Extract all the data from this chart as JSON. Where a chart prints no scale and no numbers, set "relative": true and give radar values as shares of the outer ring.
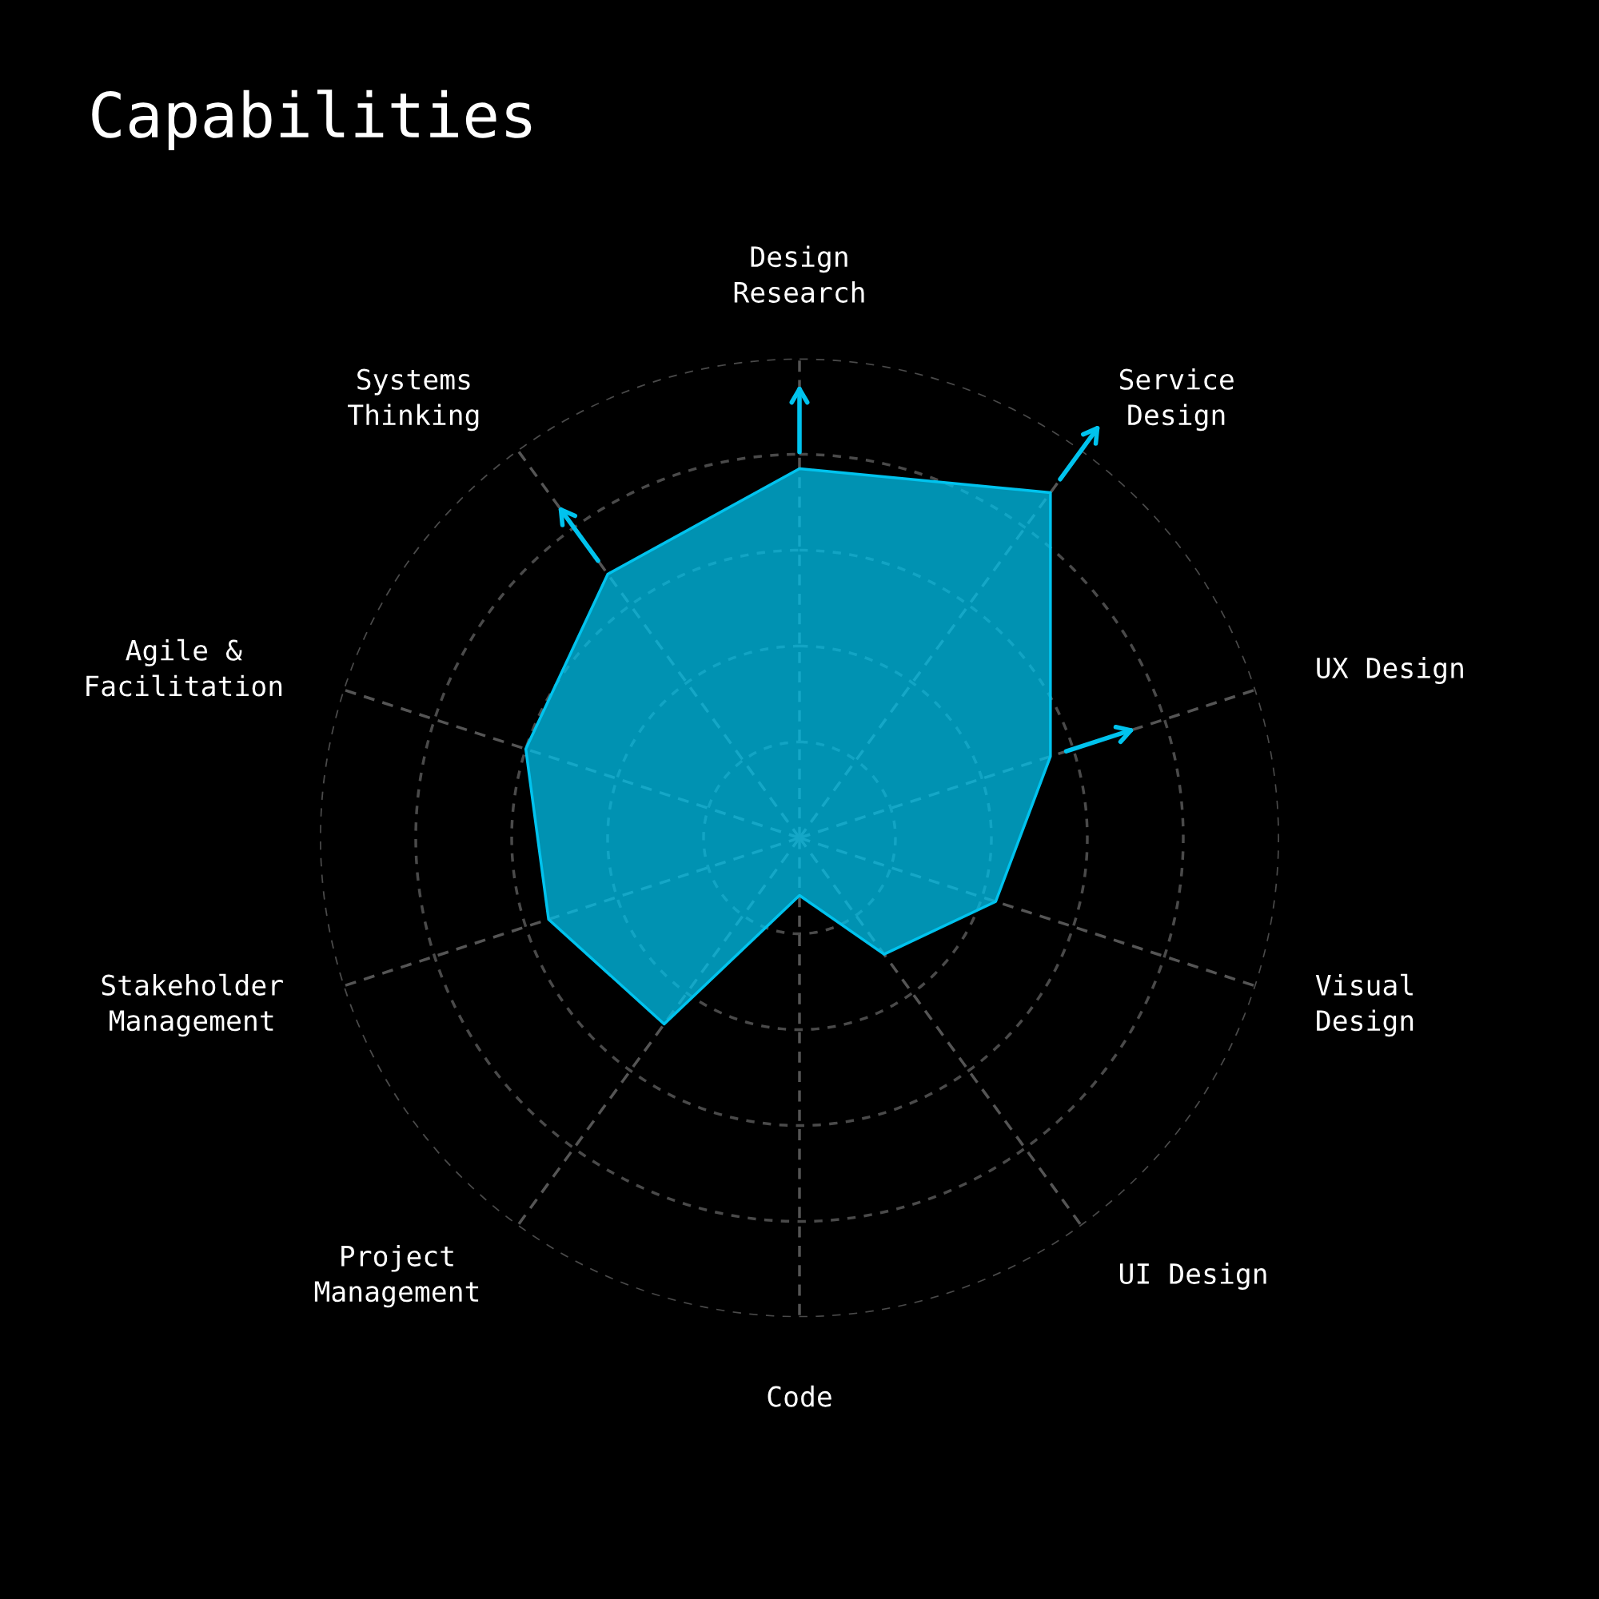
{
  "chart_data": {
    "type": "radar",
    "title": "Capabilities",
    "relative": true,
    "categories": [
      "Design\nResearch",
      "Service\nDesign",
      "UX Design",
      "Visual\nDesign",
      "UI Design",
      "Code",
      "Project\nManagement",
      "Stakeholder\nManagement",
      "Agile &\nFacilitation",
      "Systems\nThinking"
    ],
    "series": [
      {
        "color": "#00c3ee",
        "values": [
          0.77,
          0.89,
          0.55,
          0.43,
          0.3,
          0.12,
          0.48,
          0.55,
          0.6,
          0.68
        ]
      }
    ],
    "grid": true,
    "line_style": "solid",
    "marker": "none",
    "legend": false
  }
}
